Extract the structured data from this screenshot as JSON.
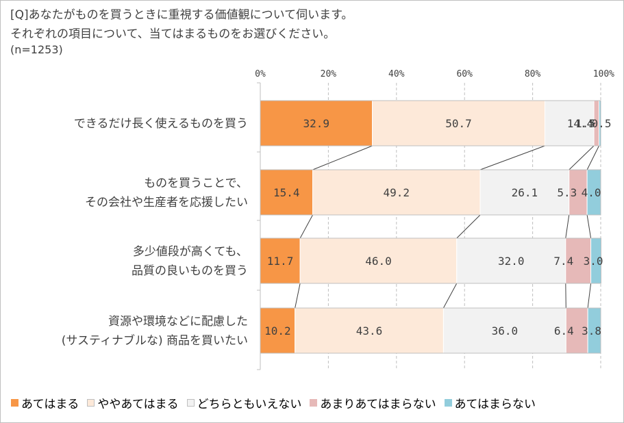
{
  "question": {
    "line1": "[Q]あなたがものを買うときに重視する価値観について伺います。",
    "line2": "それぞれの項目について、当てはまるものをお選びください。",
    "line3": "(n=1253)"
  },
  "colors": {
    "series": [
      "#f79646",
      "#fde9d9",
      "#f2f2f2",
      "#e6b9b8",
      "#92cddc"
    ],
    "border": "#bfbfbf",
    "text": "#404040"
  },
  "chart_data": {
    "type": "bar",
    "orientation": "horizontal",
    "stacked": true,
    "percent": true,
    "xlim": [
      0,
      100
    ],
    "x_ticks": [
      "0%",
      "20%",
      "40%",
      "60%",
      "80%",
      "100%"
    ],
    "grid": true,
    "legend_position": "bottom",
    "categories": [
      [
        "できるだけ長く使えるものを買う"
      ],
      [
        "ものを買うことで、",
        "その会社や生産者を応援したい"
      ],
      [
        "多少値段が高くても、",
        "品質の良いものを買う"
      ],
      [
        "資源や環境などに配慮した",
        "(サスティナブルな) 商品を買いたい"
      ]
    ],
    "series": [
      {
        "name": "あてはまる",
        "values": [
          32.9,
          15.4,
          11.7,
          10.2
        ],
        "labels": [
          "32.9",
          "15.4",
          "11.7",
          "10.2"
        ]
      },
      {
        "name": "ややあてはまる",
        "values": [
          50.7,
          49.2,
          46.0,
          43.6
        ],
        "labels": [
          "50.7",
          "49.2",
          "46.0",
          "43.6"
        ]
      },
      {
        "name": "どちらともいえない",
        "values": [
          14.4,
          26.1,
          32.0,
          36.0
        ],
        "labels": [
          "14.4",
          "26.1",
          "32.0",
          "36.0"
        ]
      },
      {
        "name": "あまりあてはまらない",
        "values": [
          1.5,
          5.3,
          7.4,
          6.4
        ],
        "labels": [
          "1.5",
          "5.3",
          "7.4",
          "6.4"
        ]
      },
      {
        "name": "あてはまらない",
        "values": [
          0.5,
          4.0,
          3.0,
          3.8
        ],
        "labels": [
          "0.5",
          "4.0",
          "3.0",
          "3.8"
        ]
      }
    ]
  }
}
